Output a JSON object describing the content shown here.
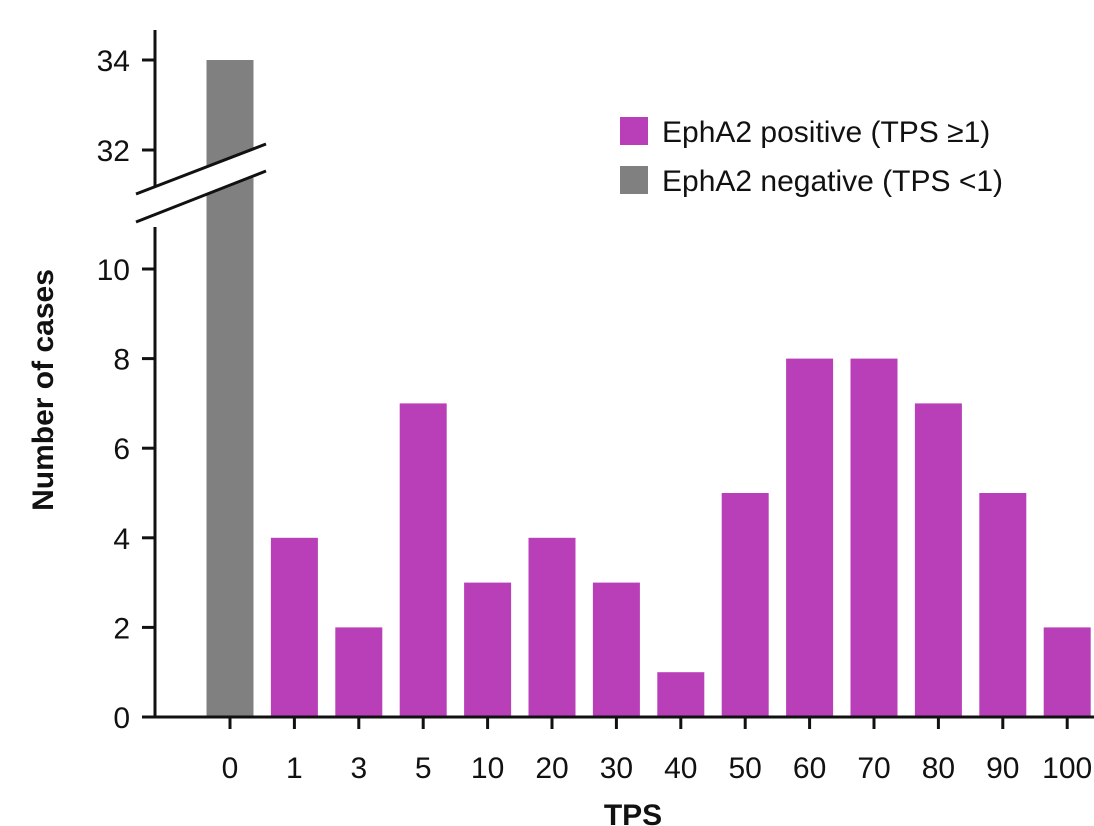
{
  "chart_data": {
    "type": "bar",
    "xlabel": "TPS",
    "ylabel": "Number of cases",
    "categories": [
      "0",
      "1",
      "3",
      "5",
      "10",
      "20",
      "30",
      "40",
      "50",
      "60",
      "70",
      "80",
      "90",
      "100"
    ],
    "values": [
      34,
      4,
      2,
      7,
      3,
      4,
      3,
      1,
      5,
      8,
      8,
      7,
      5,
      2
    ],
    "bar_series": [
      "negative",
      "positive",
      "positive",
      "positive",
      "positive",
      "positive",
      "positive",
      "positive",
      "positive",
      "positive",
      "positive",
      "positive",
      "positive",
      "positive"
    ],
    "series": [
      {
        "key": "positive",
        "name": "EphA2 positive (TPS ≥1)",
        "color": "#b83fb8"
      },
      {
        "key": "negative",
        "name": "EphA2 negative (TPS <1)",
        "color": "#808080"
      }
    ],
    "y_axis": {
      "broken": true,
      "lower_range": [
        0,
        11
      ],
      "lower_ticks": [
        "0",
        "2",
        "4",
        "6",
        "8",
        "10"
      ],
      "upper_range": [
        31,
        34.5
      ],
      "upper_ticks": [
        "32",
        "34"
      ]
    },
    "legend_position": "top-right",
    "grid": false
  }
}
